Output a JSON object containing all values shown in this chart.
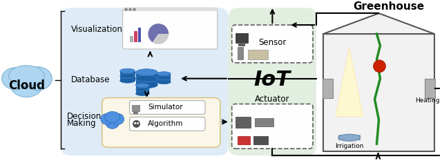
{
  "bg_color": "#ffffff",
  "cloud_color": "#aed6f1",
  "cloud_box_color": "#d6eaf8",
  "iot_box_color": "#d5e8d4",
  "decision_box_color": "#fef9e7",
  "cloud_text": "Cloud",
  "iot_text": "IoT",
  "greenhouse_text": "Greenhouse",
  "visualization_text": "Visualization",
  "database_text": "Database",
  "sensor_text": "Sensor",
  "actuator_text": "Actuator",
  "simulator_text": "Simulator",
  "algorithm_text": "Algorithm",
  "irrigation_text": "Irrigation",
  "heating_text": "Heating",
  "figsize": [
    6.4,
    2.33
  ],
  "dpi": 100
}
